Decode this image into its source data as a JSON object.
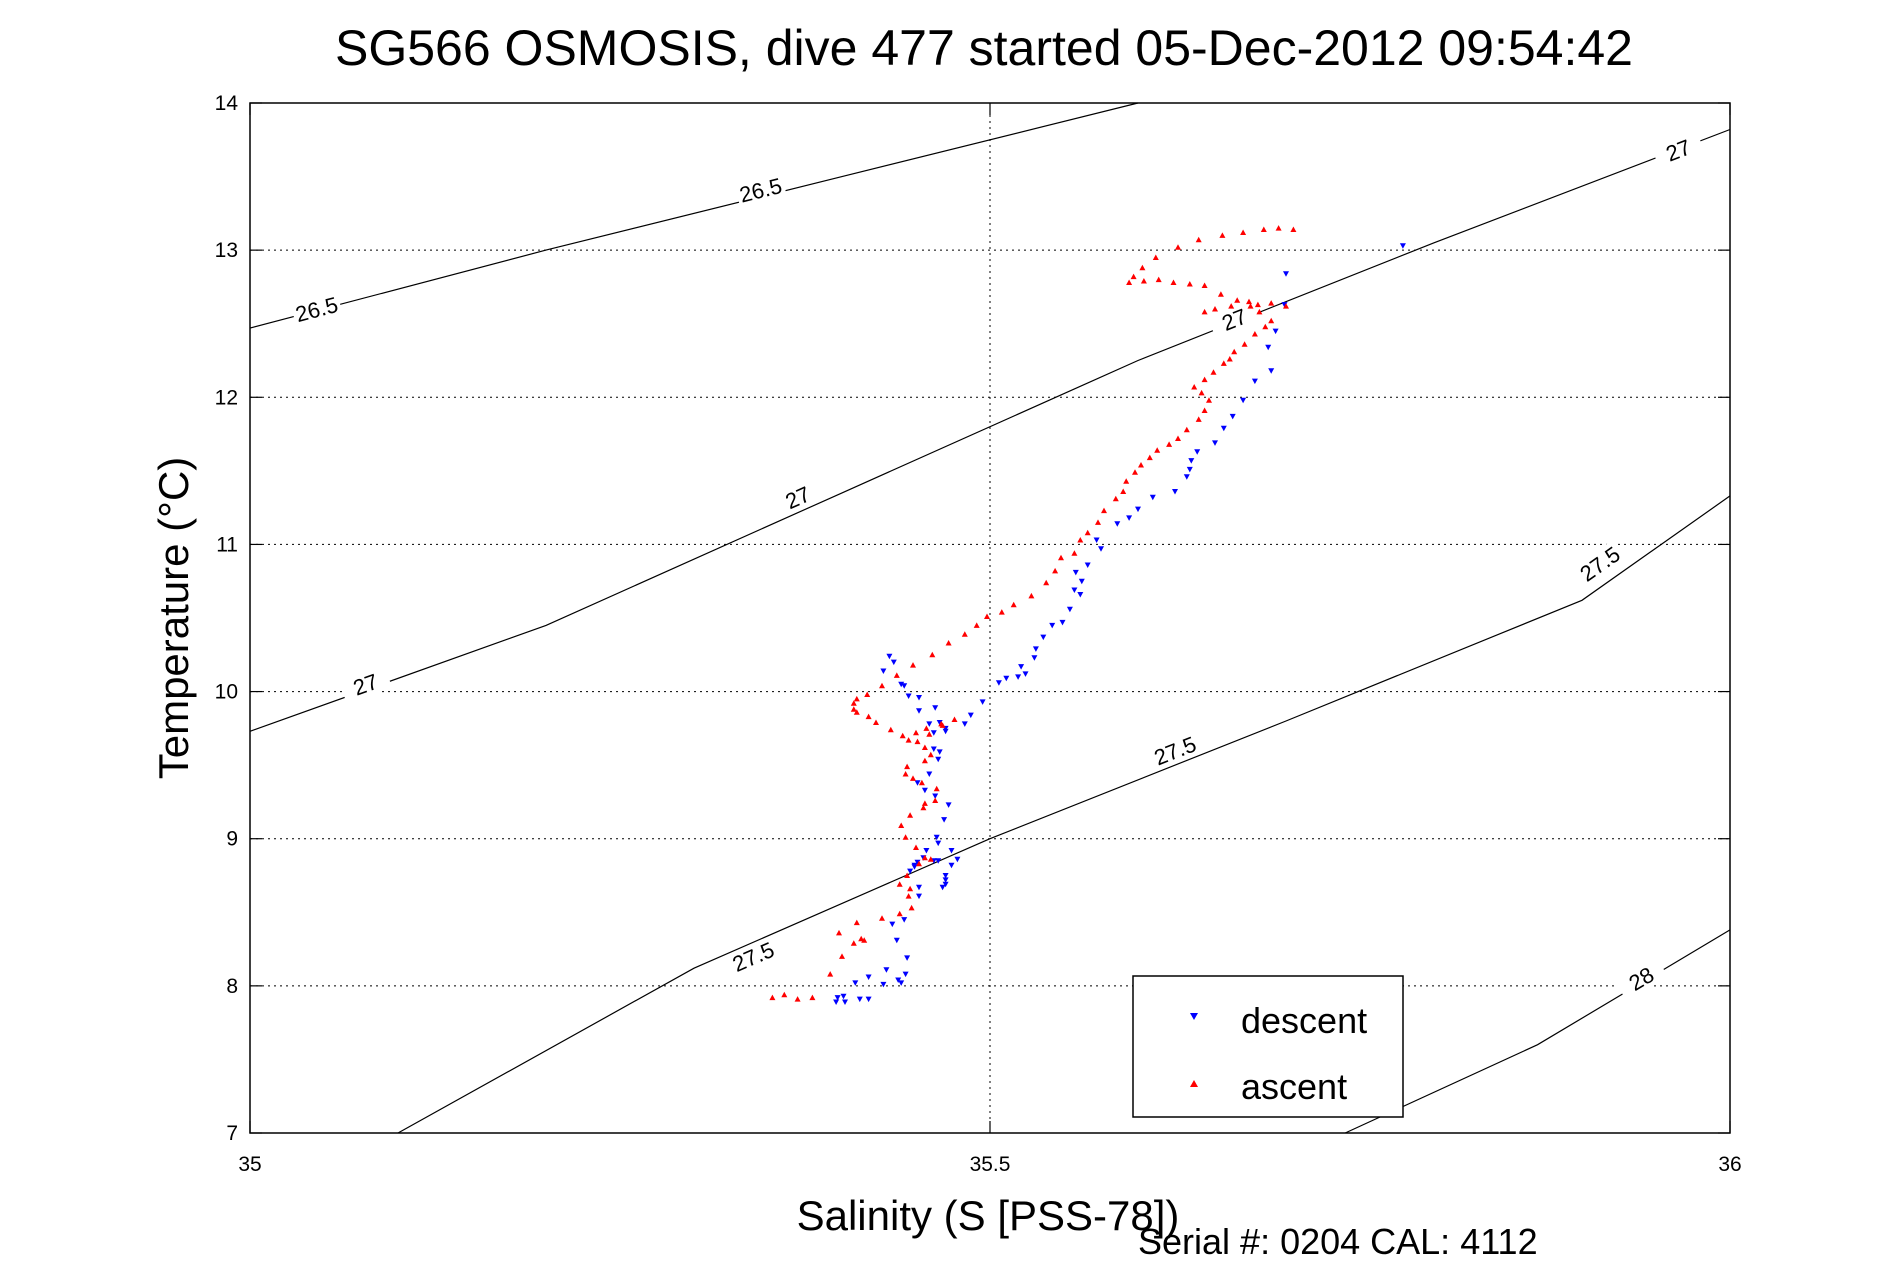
{
  "chart_data": {
    "type": "scatter",
    "title": "SG566 OSMOSIS, dive 477 started 05-Dec-2012 09:54:42",
    "xlabel": "Salinity (S [PSS-78])",
    "ylabel": "Temperature (°C)",
    "xlim": [
      35,
      36
    ],
    "ylim": [
      7,
      14
    ],
    "x_ticks": [
      "35",
      "35.5",
      "36"
    ],
    "y_ticks": [
      "7",
      "8",
      "9",
      "10",
      "11",
      "12",
      "13",
      "14"
    ],
    "grid": true,
    "legend_placement": "bottom-right",
    "contours": [
      {
        "label": "26.5",
        "points": [
          [
            35,
            12.47
          ],
          [
            35.2,
            13.0
          ],
          [
            35.4,
            13.5
          ],
          [
            35.6,
            14.0
          ]
        ],
        "label_positions": [
          [
            35.045,
            12.6
          ],
          [
            35.345,
            13.41
          ]
        ]
      },
      {
        "label": "27",
        "points": [
          [
            35,
            9.73
          ],
          [
            35.2,
            10.45
          ],
          [
            35.4,
            11.35
          ],
          [
            35.6,
            12.25
          ],
          [
            35.8,
            13.05
          ],
          [
            36,
            13.82
          ]
        ],
        "label_positions": [
          [
            35.078,
            10.05
          ],
          [
            35.37,
            11.32
          ],
          [
            35.665,
            12.53
          ],
          [
            35.965,
            13.68
          ]
        ]
      },
      {
        "label": "27.5",
        "points": [
          [
            35.1,
            7.0
          ],
          [
            35.3,
            8.12
          ],
          [
            35.5,
            9.0
          ],
          [
            35.7,
            9.8
          ],
          [
            35.9,
            10.62
          ],
          [
            36,
            11.33
          ]
        ],
        "label_positions": [
          [
            35.34,
            8.2
          ],
          [
            35.625,
            9.6
          ],
          [
            35.912,
            10.87
          ]
        ]
      },
      {
        "label": "28",
        "points": [
          [
            35.74,
            7.0
          ],
          [
            35.87,
            7.6
          ],
          [
            36,
            8.38
          ]
        ],
        "label_positions": [
          [
            35.94,
            8.05
          ]
        ]
      }
    ],
    "series": [
      {
        "name": "descent",
        "color": "#0000ff",
        "x": [
          35.779,
          35.7,
          35.699,
          35.693,
          35.688,
          35.69,
          35.679,
          35.671,
          35.664,
          35.658,
          35.652,
          35.64,
          35.636,
          35.635,
          35.633,
          35.625,
          35.61,
          35.6,
          35.594,
          35.586,
          35.572,
          35.575,
          35.566,
          35.558,
          35.562,
          35.557,
          35.561,
          35.554,
          35.549,
          35.542,
          35.536,
          35.531,
          35.53,
          35.521,
          35.524,
          35.519,
          35.511,
          35.506,
          35.495,
          35.487,
          35.483,
          35.47,
          35.466,
          35.462,
          35.462,
          35.459,
          35.452,
          35.445,
          35.442,
          35.44,
          35.435,
          35.428,
          35.432,
          35.452,
          35.463,
          35.466,
          35.47,
          35.465,
          35.459,
          35.451,
          35.456,
          35.463,
          35.472,
          35.469,
          35.464,
          35.457,
          35.449,
          35.446,
          35.449,
          35.451,
          35.455,
          35.465,
          35.468,
          35.47,
          35.47,
          35.47,
          35.474,
          35.478,
          35.474,
          35.465,
          35.462,
          35.452,
          35.452,
          35.442,
          35.434,
          35.437,
          35.444,
          35.44,
          35.443,
          35.43,
          35.418,
          35.409,
          35.401,
          35.397,
          35.396,
          35.402,
          35.412,
          35.418,
          35.428,
          35.438
        ],
        "y": [
          13.03,
          12.84,
          12.63,
          12.45,
          12.34,
          12.18,
          12.11,
          11.98,
          11.87,
          11.79,
          11.69,
          11.63,
          11.57,
          11.51,
          11.46,
          11.36,
          11.32,
          11.24,
          11.18,
          11.14,
          11.03,
          10.97,
          10.86,
          10.81,
          10.75,
          10.69,
          10.66,
          10.56,
          10.47,
          10.45,
          10.37,
          10.29,
          10.23,
          10.17,
          10.12,
          10.1,
          10.09,
          10.06,
          9.93,
          9.84,
          9.78,
          9.75,
          9.59,
          9.61,
          9.72,
          9.78,
          9.87,
          9.97,
          10.04,
          10.05,
          10.2,
          10.14,
          10.24,
          9.96,
          9.89,
          9.79,
          9.73,
          9.54,
          9.44,
          9.38,
          9.33,
          9.29,
          9.23,
          9.13,
          9.01,
          8.92,
          8.81,
          8.78,
          8.82,
          8.84,
          8.87,
          8.85,
          8.67,
          8.69,
          8.72,
          8.75,
          8.82,
          8.86,
          8.92,
          8.97,
          8.85,
          8.67,
          8.61,
          8.45,
          8.42,
          8.31,
          8.19,
          8.02,
          8.08,
          8.11,
          8.06,
          8.02,
          7.93,
          7.92,
          7.89,
          7.89,
          7.91,
          7.91,
          8.01,
          8.04
        ]
      },
      {
        "name": "ascent",
        "color": "#ff0000",
        "x": [
          35.353,
          35.361,
          35.37,
          35.38,
          35.392,
          35.4,
          35.415,
          35.413,
          35.408,
          35.398,
          35.41,
          35.427,
          35.439,
          35.447,
          35.445,
          35.446,
          35.439,
          35.444,
          35.452,
          35.46,
          35.456,
          35.45,
          35.443,
          35.44,
          35.446,
          35.455,
          35.456,
          35.463,
          35.464,
          35.454,
          35.448,
          35.443,
          35.444,
          35.456,
          35.46,
          35.456,
          35.445,
          35.45,
          35.457,
          35.467,
          35.476,
          35.468,
          35.459,
          35.451,
          35.441,
          35.433,
          35.423,
          35.418,
          35.41,
          35.408,
          35.408,
          35.41,
          35.417,
          35.427,
          35.437,
          35.448,
          35.461,
          35.472,
          35.483,
          35.491,
          35.498,
          35.508,
          35.516,
          35.528,
          35.538,
          35.544,
          35.548,
          35.557,
          35.561,
          35.566,
          35.573,
          35.577,
          35.585,
          35.59,
          35.592,
          35.598,
          35.602,
          35.608,
          35.613,
          35.621,
          35.627,
          35.633,
          35.641,
          35.645,
          35.648,
          35.643,
          35.638,
          35.645,
          35.651,
          35.658,
          35.662,
          35.665,
          35.672,
          35.679,
          35.686,
          35.69,
          35.682,
          35.676,
          35.667,
          35.656,
          35.645,
          35.635,
          35.624,
          35.614,
          35.604,
          35.594,
          35.597,
          35.603,
          35.612,
          35.627,
          35.641,
          35.657,
          35.671,
          35.685,
          35.695,
          35.705,
          35.7,
          35.69,
          35.681,
          35.675,
          35.663,
          35.652,
          35.645
        ],
        "y": [
          7.92,
          7.94,
          7.91,
          7.92,
          8.08,
          8.2,
          8.31,
          8.32,
          8.29,
          8.36,
          8.43,
          8.46,
          8.49,
          8.53,
          8.61,
          8.66,
          8.69,
          8.75,
          8.83,
          8.86,
          8.87,
          8.94,
          9.01,
          9.09,
          9.16,
          9.21,
          9.24,
          9.26,
          9.34,
          9.38,
          9.41,
          9.44,
          9.49,
          9.53,
          9.57,
          9.62,
          9.67,
          9.72,
          9.75,
          9.78,
          9.81,
          9.77,
          9.71,
          9.66,
          9.7,
          9.74,
          9.79,
          9.83,
          9.86,
          9.88,
          9.92,
          9.95,
          9.98,
          10.04,
          10.11,
          10.18,
          10.25,
          10.33,
          10.39,
          10.45,
          10.51,
          10.54,
          10.59,
          10.65,
          10.74,
          10.82,
          10.91,
          10.94,
          11.03,
          11.08,
          11.15,
          11.23,
          11.31,
          11.36,
          11.43,
          11.49,
          11.54,
          11.59,
          11.64,
          11.68,
          11.72,
          11.78,
          11.85,
          11.91,
          11.98,
          12.03,
          12.07,
          12.12,
          12.17,
          12.23,
          12.26,
          12.31,
          12.36,
          12.43,
          12.48,
          12.52,
          12.58,
          12.62,
          12.66,
          12.7,
          12.76,
          12.77,
          12.78,
          12.8,
          12.79,
          12.78,
          12.82,
          12.88,
          12.95,
          13.02,
          13.07,
          13.1,
          13.12,
          13.14,
          13.15,
          13.14,
          12.62,
          12.64,
          12.63,
          12.65,
          12.62,
          12.6,
          12.58
        ]
      }
    ]
  },
  "legend": {
    "items": [
      {
        "label": "descent",
        "color": "#0000ff",
        "marker": "triangle-down"
      },
      {
        "label": "ascent",
        "color": "#ff0000",
        "marker": "triangle-up"
      }
    ]
  },
  "footer": {
    "text": "Serial #: 0204  CAL: 4112"
  }
}
